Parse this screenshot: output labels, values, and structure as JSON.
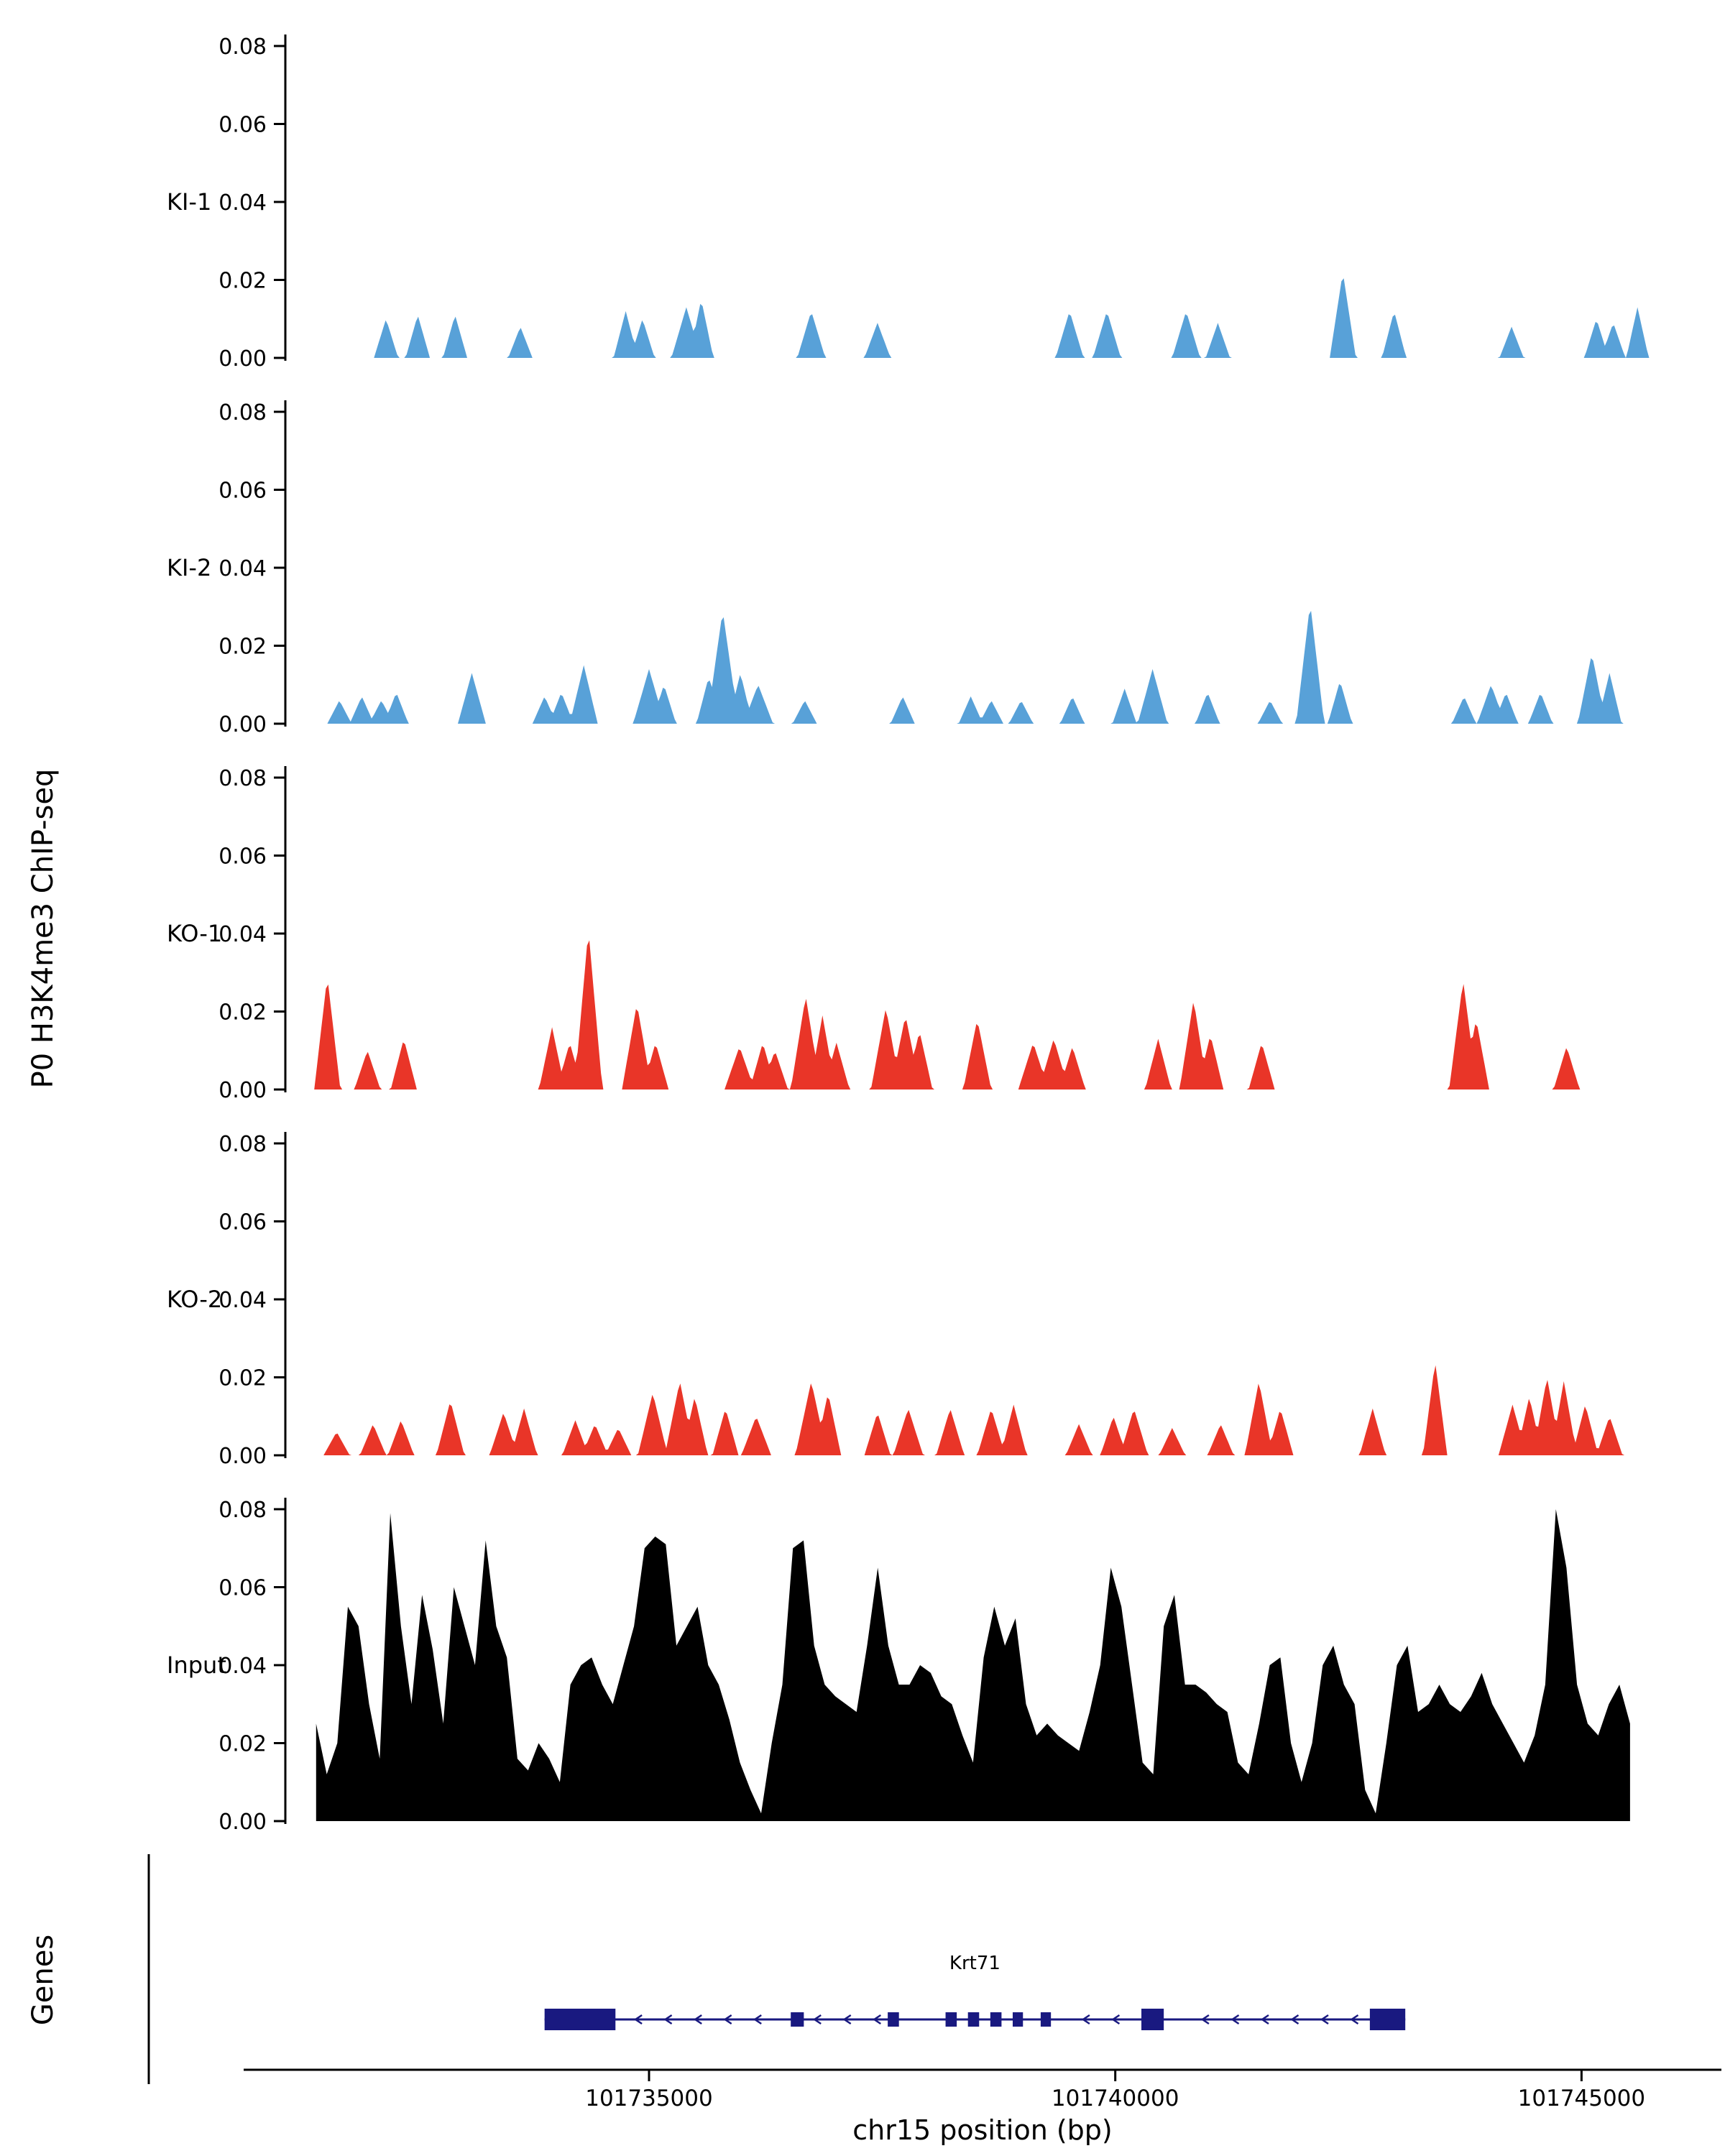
{
  "chart_data": {
    "type": "area",
    "title": "",
    "ylabel": "P0 H3K4me3 ChIP-seq",
    "xlabel": "chr15 position (bp)",
    "genes_label": "Genes",
    "xlim": [
      101731100,
      101746500
    ],
    "x_ticks": [
      101735000,
      101740000,
      101745000
    ],
    "x_tick_labels": [
      "101735000",
      "101740000",
      "101745000"
    ],
    "y_ticks": [
      0,
      0.02,
      0.04,
      0.06,
      0.08
    ],
    "y_tick_labels": [
      "0.00",
      "0.02",
      "0.04",
      "0.06",
      "0.08"
    ],
    "ylim": [
      0,
      0.085
    ],
    "grid": false,
    "legend": "none",
    "colors": {
      "ki": "#58A1D8",
      "ko": "#E93528",
      "input": "#000000",
      "gene": "#191980",
      "axis": "#000000"
    },
    "tracks": [
      {
        "name": "KI-1",
        "color": "#58A1D8",
        "default_width": 130,
        "peaks": [
          [
            101732180,
            0.01
          ],
          [
            101732520,
            0.011
          ],
          [
            101732920,
            0.011
          ],
          [
            101733620,
            0.008
          ],
          [
            101734750,
            0.012
          ],
          [
            101734930,
            0.01
          ],
          [
            101735400,
            0.013,
            160
          ],
          [
            101735560,
            0.015
          ],
          [
            101736740,
            0.012,
            150
          ],
          [
            101737450,
            0.009,
            140
          ],
          [
            101739510,
            0.012,
            150
          ],
          [
            101739910,
            0.012,
            150
          ],
          [
            101740760,
            0.012,
            150
          ],
          [
            101741100,
            0.009
          ],
          [
            101742440,
            0.022,
            140
          ],
          [
            101742990,
            0.012
          ],
          [
            101744250,
            0.008
          ],
          [
            101745160,
            0.01
          ],
          [
            101745340,
            0.009
          ],
          [
            101745600,
            0.013,
            120
          ]
        ]
      },
      {
        "name": "KI-2",
        "color": "#58A1D8",
        "default_width": 130,
        "peaks": [
          [
            101731680,
            0.006
          ],
          [
            101731920,
            0.007
          ],
          [
            101732130,
            0.006
          ],
          [
            101732290,
            0.008
          ],
          [
            101733100,
            0.013,
            150
          ],
          [
            101733880,
            0.007
          ],
          [
            101734060,
            0.008
          ],
          [
            101734300,
            0.015,
            150
          ],
          [
            101735000,
            0.014,
            170
          ],
          [
            101735160,
            0.01
          ],
          [
            101735640,
            0.012
          ],
          [
            101735790,
            0.029,
            170
          ],
          [
            101735980,
            0.013
          ],
          [
            101736170,
            0.01,
            160
          ],
          [
            101736670,
            0.006
          ],
          [
            101737720,
            0.007
          ],
          [
            101738450,
            0.007
          ],
          [
            101738670,
            0.006
          ],
          [
            101738990,
            0.006
          ],
          [
            101739540,
            0.007
          ],
          [
            101740100,
            0.009
          ],
          [
            101740400,
            0.014,
            160
          ],
          [
            101740990,
            0.008
          ],
          [
            101741660,
            0.006
          ],
          [
            101742090,
            0.031,
            150
          ],
          [
            101742410,
            0.011
          ],
          [
            101743740,
            0.007
          ],
          [
            101744030,
            0.01,
            150
          ],
          [
            101744190,
            0.008
          ],
          [
            101744560,
            0.008
          ],
          [
            101745110,
            0.018,
            150
          ],
          [
            101745300,
            0.013
          ]
        ]
      },
      {
        "name": "KO-1",
        "color": "#E93528",
        "default_width": 140,
        "peaks": [
          [
            101731550,
            0.029,
            140
          ],
          [
            101731980,
            0.01
          ],
          [
            101732370,
            0.013
          ],
          [
            101733960,
            0.016
          ],
          [
            101734150,
            0.012
          ],
          [
            101734350,
            0.041,
            150
          ],
          [
            101734870,
            0.022,
            160
          ],
          [
            101735070,
            0.012
          ],
          [
            101735970,
            0.011,
            160
          ],
          [
            101736220,
            0.012
          ],
          [
            101736350,
            0.01
          ],
          [
            101736680,
            0.024,
            160
          ],
          [
            101736860,
            0.019
          ],
          [
            101737010,
            0.012
          ],
          [
            101737540,
            0.021,
            160
          ],
          [
            101737750,
            0.019,
            160
          ],
          [
            101737900,
            0.015
          ],
          [
            101738520,
            0.018,
            150
          ],
          [
            101739120,
            0.012,
            160
          ],
          [
            101739340,
            0.013,
            160
          ],
          [
            101739540,
            0.011
          ],
          [
            101740460,
            0.013
          ],
          [
            101740840,
            0.023,
            150
          ],
          [
            101741020,
            0.014
          ],
          [
            101741570,
            0.012,
            140
          ],
          [
            101743730,
            0.028,
            150
          ],
          [
            101743870,
            0.018
          ],
          [
            101744840,
            0.011,
            140
          ]
        ]
      },
      {
        "name": "KO-2",
        "color": "#E93528",
        "default_width": 140,
        "peaks": [
          [
            101731650,
            0.006
          ],
          [
            101732040,
            0.008
          ],
          [
            101732340,
            0.009
          ],
          [
            101732870,
            0.014,
            150
          ],
          [
            101733440,
            0.011,
            150
          ],
          [
            101733660,
            0.012
          ],
          [
            101734210,
            0.009
          ],
          [
            101734420,
            0.008
          ],
          [
            101734670,
            0.007
          ],
          [
            101735040,
            0.016,
            160
          ],
          [
            101735330,
            0.019,
            160
          ],
          [
            101735490,
            0.015
          ],
          [
            101735820,
            0.012
          ],
          [
            101736150,
            0.01,
            160
          ],
          [
            101736740,
            0.019,
            170
          ],
          [
            101736920,
            0.016
          ],
          [
            101737450,
            0.011
          ],
          [
            101737780,
            0.012,
            160
          ],
          [
            101738230,
            0.012,
            150
          ],
          [
            101738670,
            0.012,
            150
          ],
          [
            101738910,
            0.013
          ],
          [
            101739610,
            0.008
          ],
          [
            101739980,
            0.01
          ],
          [
            101740200,
            0.012,
            150
          ],
          [
            101740610,
            0.007
          ],
          [
            101741130,
            0.008
          ],
          [
            101741540,
            0.019,
            150
          ],
          [
            101741770,
            0.012
          ],
          [
            101742760,
            0.012,
            140
          ],
          [
            101743430,
            0.024,
            130
          ],
          [
            101744260,
            0.013,
            150
          ],
          [
            101744440,
            0.015
          ],
          [
            101744630,
            0.02,
            150
          ],
          [
            101744810,
            0.019
          ],
          [
            101745040,
            0.013
          ],
          [
            101745300,
            0.01
          ]
        ]
      },
      {
        "name": "Input",
        "color": "#000000",
        "samples": {
          "x_start": 101731430,
          "x_end": 101745520,
          "values": [
            0.025,
            0.012,
            0.02,
            0.055,
            0.05,
            0.03,
            0.016,
            0.079,
            0.05,
            0.03,
            0.058,
            0.044,
            0.025,
            0.06,
            0.05,
            0.04,
            0.072,
            0.05,
            0.042,
            0.016,
            0.013,
            0.02,
            0.016,
            0.01,
            0.035,
            0.04,
            0.042,
            0.035,
            0.03,
            0.04,
            0.05,
            0.07,
            0.073,
            0.071,
            0.045,
            0.05,
            0.055,
            0.04,
            0.035,
            0.026,
            0.015,
            0.008,
            0.002,
            0.02,
            0.035,
            0.07,
            0.072,
            0.045,
            0.035,
            0.032,
            0.03,
            0.028,
            0.045,
            0.065,
            0.045,
            0.035,
            0.035,
            0.04,
            0.038,
            0.032,
            0.03,
            0.022,
            0.015,
            0.042,
            0.055,
            0.045,
            0.052,
            0.03,
            0.022,
            0.025,
            0.022,
            0.02,
            0.018,
            0.028,
            0.04,
            0.065,
            0.055,
            0.035,
            0.015,
            0.012,
            0.05,
            0.058,
            0.035,
            0.035,
            0.033,
            0.03,
            0.028,
            0.015,
            0.012,
            0.025,
            0.04,
            0.042,
            0.02,
            0.01,
            0.02,
            0.04,
            0.045,
            0.035,
            0.03,
            0.008,
            0.002,
            0.02,
            0.04,
            0.045,
            0.028,
            0.03,
            0.035,
            0.03,
            0.028,
            0.032,
            0.038,
            0.03,
            0.025,
            0.02,
            0.015,
            0.022,
            0.035,
            0.08,
            0.065,
            0.035,
            0.025,
            0.022,
            0.03,
            0.035,
            0.025
          ]
        }
      }
    ],
    "gene": {
      "name": "Krt71",
      "strand": "-",
      "start": 101733880,
      "end": 101743110,
      "exons": [
        [
          101733880,
          101734640,
          1
        ],
        [
          101736520,
          101736660,
          0
        ],
        [
          101737560,
          101737680,
          0
        ],
        [
          101738180,
          101738300,
          0
        ],
        [
          101738420,
          101738540,
          0
        ],
        [
          101738660,
          101738780,
          0
        ],
        [
          101738900,
          101739010,
          0
        ],
        [
          101739200,
          101739310,
          0
        ],
        [
          101740280,
          101740520,
          1
        ],
        [
          101742730,
          101743110,
          1
        ]
      ]
    }
  }
}
